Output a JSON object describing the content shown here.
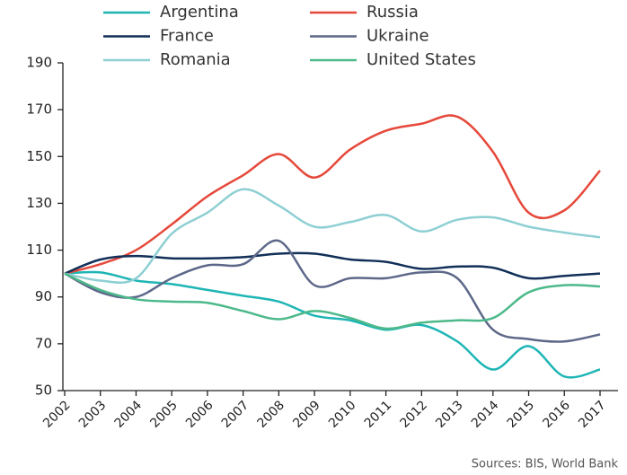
{
  "chart_data": {
    "type": "line",
    "categories": [
      "2002",
      "2003",
      "2004",
      "2005",
      "2006",
      "2007",
      "2008",
      "2009",
      "2010",
      "2011",
      "2012",
      "2013",
      "2014",
      "2015",
      "2016",
      "2017"
    ],
    "series": [
      {
        "name": "Argentina",
        "color": "#1fb5b5",
        "values": [
          100,
          100.5,
          97,
          95.5,
          93,
          90.5,
          88,
          82,
          80,
          76,
          78,
          71,
          59,
          69,
          56,
          59
        ]
      },
      {
        "name": "Russia",
        "color": "#e5483a",
        "values": [
          100,
          104,
          110,
          121,
          133,
          142,
          151,
          141,
          153,
          161,
          164,
          167,
          152,
          126,
          127,
          144
        ]
      },
      {
        "name": "France",
        "color": "#112f58",
        "values": [
          100,
          106,
          107.5,
          106.5,
          106.5,
          107,
          108.5,
          108.5,
          106,
          105,
          102,
          103,
          102.5,
          98,
          99,
          100
        ]
      },
      {
        "name": "Ukraine",
        "color": "#5d6889",
        "values": [
          100,
          92,
          90,
          98,
          103.5,
          104,
          114,
          95,
          98,
          98,
          100.5,
          98,
          76,
          72,
          71,
          74
        ]
      },
      {
        "name": "Romania",
        "color": "#8ecfd3",
        "values": [
          100,
          97,
          98,
          117,
          126,
          136,
          129,
          120,
          122,
          125,
          118,
          123,
          124,
          120,
          117.5,
          115.5
        ]
      },
      {
        "name": "United States",
        "color": "#4cb98a",
        "values": [
          100,
          93,
          89,
          88,
          87.5,
          84,
          80.5,
          84,
          81,
          76.5,
          79,
          80,
          81,
          92,
          95,
          94.5
        ]
      }
    ],
    "ylim": [
      50,
      190
    ],
    "yticks": [
      50,
      70,
      90,
      110,
      130,
      150,
      170,
      190
    ],
    "grid": false,
    "legend": "top",
    "source": "Sources: BIS, World Bank"
  }
}
